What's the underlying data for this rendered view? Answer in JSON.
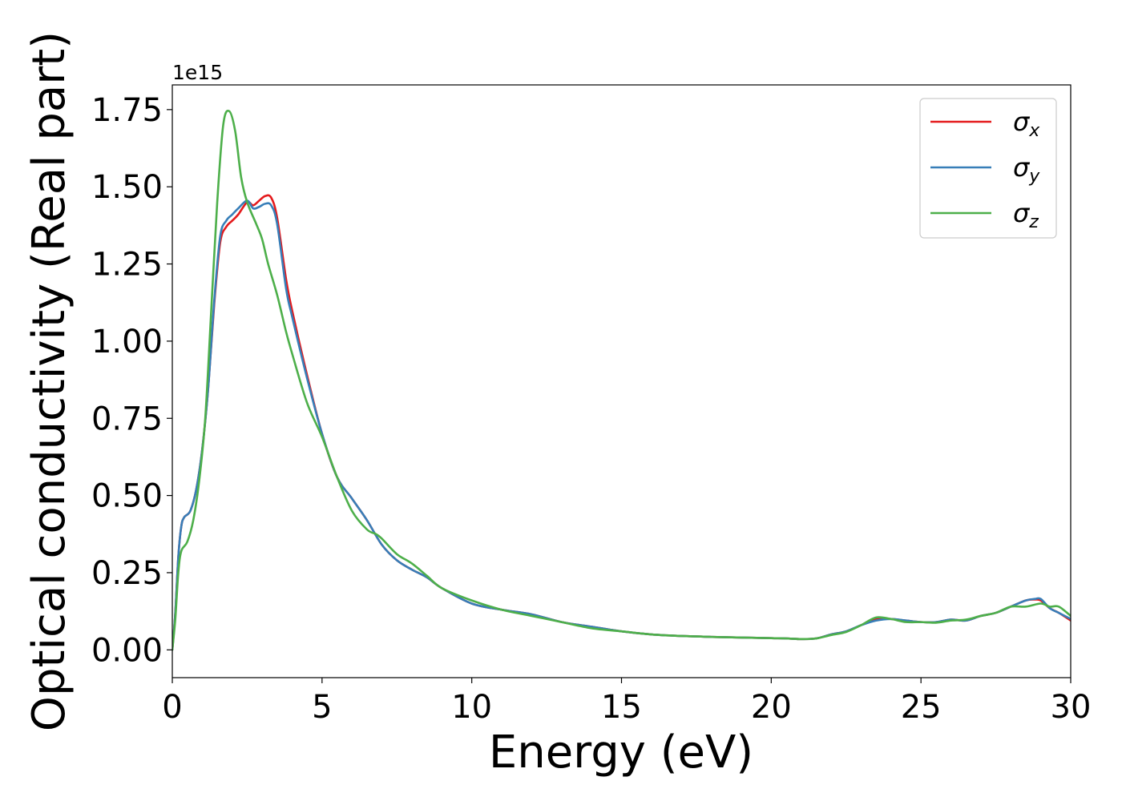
{
  "chart_data": {
    "type": "line",
    "xlabel": "Energy (eV)",
    "ylabel": "Optical conductivity (Real part)",
    "offset_label": "1e15",
    "xlim": [
      0,
      30
    ],
    "ylim": [
      -0.09,
      1.83
    ],
    "x_ticks": [
      0,
      5,
      10,
      15,
      20,
      25,
      30
    ],
    "x_tick_labels": [
      "0",
      "5",
      "10",
      "15",
      "20",
      "25",
      "30"
    ],
    "y_ticks": [
      0,
      0.25,
      0.5,
      0.75,
      1.0,
      1.25,
      1.5,
      1.75
    ],
    "y_tick_labels": [
      "0.00",
      "0.25",
      "0.50",
      "0.75",
      "1.00",
      "1.25",
      "1.50",
      "1.75"
    ],
    "grid": false,
    "legend_position": "top-right",
    "series": [
      {
        "name": "σx",
        "legend_symbol": "σ",
        "legend_sub": "x",
        "color": "#e41a1c",
        "x": [
          0,
          0.1,
          0.2,
          0.3,
          0.4,
          0.6,
          0.8,
          1.0,
          1.2,
          1.4,
          1.6,
          1.8,
          2.0,
          2.2,
          2.5,
          2.7,
          2.9,
          3.1,
          3.3,
          3.5,
          3.8,
          4.0,
          4.5,
          5.0,
          5.5,
          6.0,
          6.5,
          7.0,
          7.5,
          8.0,
          8.5,
          9.0,
          10.0,
          11.0,
          12.0,
          13.0,
          14.0,
          15.0,
          16.0,
          17.0,
          18.0,
          19.0,
          20.0,
          20.5,
          21.0,
          21.5,
          22.0,
          22.5,
          23.0,
          23.5,
          24.0,
          24.5,
          25.0,
          25.5,
          26.0,
          26.5,
          27.0,
          27.5,
          28.0,
          28.5,
          28.8,
          29.0,
          29.3,
          29.6,
          30.0
        ],
        "y": [
          0.0,
          0.12,
          0.3,
          0.4,
          0.43,
          0.45,
          0.52,
          0.65,
          0.85,
          1.12,
          1.32,
          1.37,
          1.39,
          1.41,
          1.45,
          1.44,
          1.455,
          1.47,
          1.465,
          1.4,
          1.2,
          1.1,
          0.89,
          0.7,
          0.56,
          0.49,
          0.42,
          0.34,
          0.29,
          0.26,
          0.235,
          0.2,
          0.15,
          0.13,
          0.115,
          0.09,
          0.075,
          0.06,
          0.05,
          0.045,
          0.042,
          0.04,
          0.038,
          0.037,
          0.035,
          0.037,
          0.05,
          0.06,
          0.08,
          0.1,
          0.1,
          0.095,
          0.09,
          0.09,
          0.098,
          0.095,
          0.11,
          0.12,
          0.14,
          0.16,
          0.163,
          0.16,
          0.135,
          0.12,
          0.095
        ]
      },
      {
        "name": "σy",
        "legend_symbol": "σ",
        "legend_sub": "y",
        "color": "#377eb8",
        "x": [
          0,
          0.1,
          0.2,
          0.3,
          0.4,
          0.6,
          0.8,
          1.0,
          1.2,
          1.4,
          1.6,
          1.8,
          2.0,
          2.2,
          2.5,
          2.7,
          2.9,
          3.1,
          3.3,
          3.5,
          3.8,
          4.0,
          4.5,
          5.0,
          5.5,
          6.0,
          6.5,
          7.0,
          7.5,
          8.0,
          8.5,
          9.0,
          10.0,
          11.0,
          12.0,
          13.0,
          14.0,
          15.0,
          16.0,
          17.0,
          18.0,
          19.0,
          20.0,
          20.5,
          21.0,
          21.5,
          22.0,
          22.5,
          23.0,
          23.5,
          24.0,
          24.5,
          25.0,
          25.5,
          26.0,
          26.5,
          27.0,
          27.5,
          28.0,
          28.5,
          28.8,
          29.0,
          29.3,
          29.6,
          30.0
        ],
        "y": [
          0.0,
          0.12,
          0.3,
          0.4,
          0.43,
          0.45,
          0.52,
          0.65,
          0.85,
          1.13,
          1.34,
          1.39,
          1.41,
          1.43,
          1.455,
          1.43,
          1.435,
          1.445,
          1.44,
          1.38,
          1.17,
          1.08,
          0.88,
          0.7,
          0.56,
          0.49,
          0.42,
          0.34,
          0.29,
          0.26,
          0.235,
          0.2,
          0.15,
          0.13,
          0.115,
          0.09,
          0.075,
          0.06,
          0.05,
          0.045,
          0.042,
          0.04,
          0.038,
          0.037,
          0.035,
          0.037,
          0.05,
          0.06,
          0.08,
          0.095,
          0.1,
          0.095,
          0.09,
          0.09,
          0.098,
          0.095,
          0.11,
          0.12,
          0.14,
          0.16,
          0.165,
          0.165,
          0.135,
          0.12,
          0.1
        ]
      },
      {
        "name": "σz",
        "legend_symbol": "σ",
        "legend_sub": "z",
        "color": "#4daf4a",
        "x": [
          0,
          0.1,
          0.2,
          0.3,
          0.5,
          0.7,
          0.9,
          1.1,
          1.3,
          1.5,
          1.7,
          1.9,
          2.1,
          2.3,
          2.5,
          2.8,
          3.0,
          3.2,
          3.5,
          3.8,
          4.0,
          4.5,
          5.0,
          5.5,
          6.0,
          6.5,
          6.8,
          7.0,
          7.5,
          8.0,
          8.5,
          9.0,
          10.0,
          11.0,
          12.0,
          13.0,
          14.0,
          15.0,
          16.0,
          17.0,
          18.0,
          19.0,
          20.0,
          20.5,
          21.0,
          21.5,
          22.0,
          22.5,
          23.0,
          23.5,
          24.0,
          24.5,
          25.0,
          25.5,
          26.0,
          26.5,
          27.0,
          27.5,
          28.0,
          28.5,
          29.0,
          29.3,
          29.6,
          30.0
        ],
        "y": [
          0.0,
          0.1,
          0.25,
          0.32,
          0.35,
          0.42,
          0.55,
          0.75,
          1.1,
          1.45,
          1.7,
          1.745,
          1.68,
          1.53,
          1.45,
          1.38,
          1.33,
          1.25,
          1.15,
          1.03,
          0.96,
          0.8,
          0.69,
          0.56,
          0.45,
          0.39,
          0.375,
          0.36,
          0.31,
          0.28,
          0.24,
          0.2,
          0.16,
          0.13,
          0.11,
          0.09,
          0.07,
          0.06,
          0.05,
          0.045,
          0.042,
          0.04,
          0.038,
          0.037,
          0.035,
          0.037,
          0.048,
          0.058,
          0.08,
          0.105,
          0.1,
          0.09,
          0.09,
          0.088,
          0.095,
          0.098,
          0.11,
          0.12,
          0.14,
          0.14,
          0.15,
          0.14,
          0.14,
          0.11
        ]
      }
    ]
  }
}
